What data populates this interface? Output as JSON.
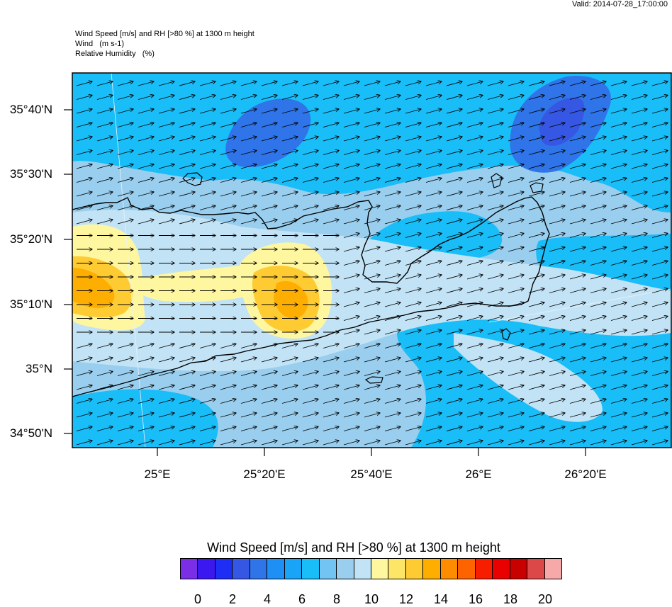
{
  "header": {
    "valid": "Valid: 2014-07-28_17:00:00",
    "title_lines": [
      "Wind Speed [m/s] and RH [>80 %] at 1300 m height",
      "Wind   (m s-1)",
      "Relative Humidity   (%)"
    ]
  },
  "axes": {
    "lat_labels": [
      "35°40'N",
      "35°30'N",
      "35°20'N",
      "35°10'N",
      "35°N",
      "34°50'N"
    ],
    "lon_labels": [
      "25°E",
      "25°20'E",
      "25°40'E",
      "26°E",
      "26°20'E"
    ]
  },
  "colorbar": {
    "title": "Wind Speed [m/s] and RH [>80 %] at 1300 m height",
    "labels": [
      "0",
      "2",
      "4",
      "6",
      "8",
      "10",
      "12",
      "14",
      "16",
      "18",
      "20"
    ],
    "colors": [
      "#7a2ee6",
      "#3b18f0",
      "#1e2ef5",
      "#3657e3",
      "#2f74e8",
      "#1e8ff5",
      "#1aa4f7",
      "#19bdf7",
      "#72c4f2",
      "#99ceee",
      "#c2e3f5",
      "#fff7a0",
      "#fde667",
      "#fecb33",
      "#fdae00",
      "#fd8c00",
      "#fd6400",
      "#f91d00",
      "#e90000",
      "#c80000",
      "#dc4848",
      "#f7a8a8"
    ]
  },
  "map_colors": {
    "background": "#99ceee",
    "light": "#c2e3f5",
    "mid": "#72c4f2",
    "cyan": "#19bdf7",
    "blue": "#2f74e8",
    "deep": "#3657e3",
    "yellow": "#fff7a0",
    "gold": "#fecb33",
    "orange": "#fdae00",
    "orange_dark": "#fd8c00",
    "coast": "#000000",
    "arrow": "#000000"
  }
}
